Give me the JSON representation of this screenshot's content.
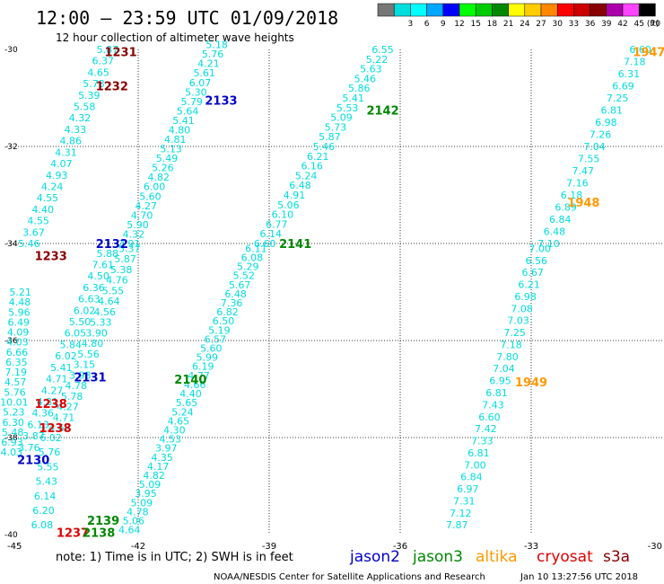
{
  "header": {
    "title": "12:00 – 23:59 UTC 01/09/2018",
    "subtitle": "12 hour collection of altimeter wave heights"
  },
  "legend": {
    "unit": "(ft)",
    "bins": [
      {
        "label": "",
        "color": "#777777"
      },
      {
        "label": "3",
        "color": "#00dddd"
      },
      {
        "label": "6",
        "color": "#00ffff"
      },
      {
        "label": "9",
        "color": "#00a8ff"
      },
      {
        "label": "12",
        "color": "#0000ff"
      },
      {
        "label": "15",
        "color": "#00ff00"
      },
      {
        "label": "18",
        "color": "#00cc00"
      },
      {
        "label": "21",
        "color": "#008800"
      },
      {
        "label": "24",
        "color": "#ffff00"
      },
      {
        "label": "27",
        "color": "#ffcc00"
      },
      {
        "label": "30",
        "color": "#ff8800"
      },
      {
        "label": "33",
        "color": "#ff0000"
      },
      {
        "label": "36",
        "color": "#cc0000"
      },
      {
        "label": "39",
        "color": "#880000"
      },
      {
        "label": "42",
        "color": "#aa00aa"
      },
      {
        "label": "45",
        "color": "#ff44ff"
      },
      {
        "label": "70",
        "color": "#000000"
      }
    ]
  },
  "axes": {
    "lon_ticks": [
      "-45",
      "-42",
      "-39",
      "-36",
      "-33",
      "-30"
    ],
    "lat_ticks": [
      "-30",
      "-32",
      "-34",
      "-36",
      "-38",
      "-40"
    ]
  },
  "satellites": [
    {
      "name": "jason2",
      "color": "#0000cc"
    },
    {
      "name": "jason3",
      "color": "#008800"
    },
    {
      "name": "altika",
      "color": "#ff9900"
    },
    {
      "name": "cryosat",
      "color": "#dd0000"
    },
    {
      "name": "s3a",
      "color": "#880000"
    }
  ],
  "footer": {
    "note": "note:  1) Time is in UTC;  2) SWH is in feet",
    "credit": "NOAA/NESDIS Center for Satellite Applications and Research",
    "timestamp": "Jan 10 13:27:56 UTC 2018"
  },
  "colors": {
    "value": "#00dddd",
    "jason2": "#0000cc",
    "jason3": "#008800",
    "altika": "#ff9900",
    "cryosat": "#dd0000",
    "s3a": "#880000"
  },
  "passes": [
    {
      "name": "A",
      "lon1": -42.7,
      "lat1": -30.0,
      "lon2": -44.5,
      "lat2": -34.0,
      "values": [
        "5.87",
        "6.37",
        "4.65",
        "5.73",
        "5.39",
        "5.58",
        "4.32",
        "4.33",
        "4.86",
        "4.31",
        "4.07",
        "4.93",
        "4.24",
        "4.55",
        "4.40",
        "4.55",
        "3.67",
        "5.46"
      ]
    },
    {
      "name": "B",
      "lon1": -42.7,
      "lat1": -34.2,
      "lon2": -44.5,
      "lat2": -38.2,
      "values": [
        "5.88",
        "7.61",
        "4.50",
        "6.36",
        "6.63",
        "6.02",
        "5.50",
        "6.05",
        "5.84",
        "6.02",
        "5.41",
        "4.71",
        "4.27",
        "4.31",
        "4.36",
        "6.13",
        "3.87",
        "3.76"
      ]
    },
    {
      "name": "C",
      "lon1": -44.7,
      "lat1": -35.0,
      "lon2": -44.9,
      "lat2": -38.3,
      "values": [
        "5.21",
        "4.48",
        "5.96",
        "6.49",
        "4.09",
        "4.03",
        "6.66",
        "6.35",
        "7.19",
        "4.57",
        "5.76",
        "10.01",
        "5.23",
        "6.30",
        "5.48",
        "6.93",
        "4.03"
      ]
    },
    {
      "name": "D",
      "lon1": -42.2,
      "lat1": -34.1,
      "lon2": -43.8,
      "lat2": -37.8,
      "values": [
        "5.37",
        "5.87",
        "5.38",
        "4.76",
        "5.55",
        "4.64",
        "4.56",
        "5.33",
        "3.90",
        "4.80",
        "5.56",
        "3.15",
        "3.98",
        "4.78",
        "5.78",
        "4.27",
        "4.71",
        "4.67"
      ]
    },
    {
      "name": "E",
      "lon1": -44.0,
      "lat1": -38.0,
      "lon2": -44.2,
      "lat2": -39.8,
      "values": [
        "6.02",
        "5.76",
        "5.55",
        "5.43",
        "6.14",
        "6.20",
        "6.08"
      ]
    },
    {
      "name": "F",
      "lon1": -40.2,
      "lat1": -29.9,
      "lon2": -42.2,
      "lat2": -34.0,
      "values": [
        "5.18",
        "5.76",
        "4.21",
        "5.61",
        "6.07",
        "5.30",
        "5.79",
        "5.64",
        "5.41",
        "4.80",
        "4.81",
        "5.13",
        "5.49",
        "5.26",
        "4.82",
        "6.00",
        "5.60",
        "4.27",
        "4.70",
        "5.90",
        "4.32",
        "3.91"
      ]
    },
    {
      "name": "G",
      "lon1": -39.3,
      "lat1": -34.1,
      "lon2": -42.2,
      "lat2": -39.9,
      "values": [
        "6.11",
        "6.08",
        "5.29",
        "5.52",
        "5.67",
        "6.48",
        "7.36",
        "6.82",
        "6.50",
        "5.19",
        "6.57",
        "5.60",
        "5.99",
        "6.19",
        "4.77",
        "4.66",
        "4.40",
        "5.65",
        "5.24",
        "4.65",
        "4.30",
        "4.53",
        "3.97",
        "4.35",
        "4.17",
        "4.82",
        "5.09",
        "3.95",
        "5.09",
        "4.78",
        "5.06",
        "4.64"
      ]
    },
    {
      "name": "H",
      "lon1": -36.4,
      "lat1": -30.0,
      "lon2": -39.1,
      "lat2": -34.0,
      "values": [
        "6.55",
        "5.22",
        "5.63",
        "5.46",
        "5.86",
        "5.41",
        "5.53",
        "5.09",
        "5.73",
        "5.87",
        "5.46",
        "6.21",
        "6.16",
        "5.24",
        "6.48",
        "4.91",
        "5.06",
        "6.10",
        "6.77",
        "6.14",
        "6.60"
      ]
    },
    {
      "name": "I",
      "lon1": -30.5,
      "lat1": -30.0,
      "lon2": -32.6,
      "lat2": -34.0,
      "values": [
        "6.60",
        "7.18",
        "6.31",
        "6.69",
        "7.25",
        "6.81",
        "6.98",
        "7.26",
        "7.04",
        "7.55",
        "7.47",
        "7.16",
        "6.18",
        "6.89",
        "6.84",
        "6.48",
        "7.10"
      ]
    },
    {
      "name": "J",
      "lon1": -32.8,
      "lat1": -34.1,
      "lon2": -34.7,
      "lat2": -39.8,
      "values": [
        "7.00",
        "6.56",
        "6.67",
        "6.21",
        "6.98",
        "7.08",
        "7.03",
        "7.25",
        "7.18",
        "7.80",
        "7.04",
        "6.95",
        "6.81",
        "7.43",
        "6.60",
        "7.42",
        "7.33",
        "6.81",
        "7.00",
        "6.84",
        "6.97",
        "7.31",
        "7.12",
        "7.87"
      ]
    }
  ],
  "pass_labels": [
    {
      "text": "1231",
      "sat": "s3a",
      "lon": -42.4,
      "lat": -30.05
    },
    {
      "text": "1232",
      "sat": "s3a",
      "lon": -42.6,
      "lat": -30.75
    },
    {
      "text": "2133",
      "sat": "jason2",
      "lon": -40.1,
      "lat": -31.05
    },
    {
      "text": "2142",
      "sat": "jason3",
      "lon": -36.4,
      "lat": -31.25
    },
    {
      "text": "1947",
      "sat": "altika",
      "lon": -30.3,
      "lat": -30.05
    },
    {
      "text": "1948",
      "sat": "altika",
      "lon": -31.8,
      "lat": -33.15
    },
    {
      "text": "2132",
      "sat": "jason2",
      "lon": -42.6,
      "lat": -34.0
    },
    {
      "text": "2141",
      "sat": "jason3",
      "lon": -38.4,
      "lat": -34.0
    },
    {
      "text": "1233",
      "sat": "s3a",
      "lon": -44.0,
      "lat": -34.25
    },
    {
      "text": "2131",
      "sat": "jason2",
      "lon": -43.1,
      "lat": -36.75
    },
    {
      "text": "2140",
      "sat": "jason3",
      "lon": -40.8,
      "lat": -36.8
    },
    {
      "text": "1949",
      "sat": "altika",
      "lon": -33.0,
      "lat": -36.85
    },
    {
      "text": "1238",
      "sat": "cryosat",
      "lon": -44.0,
      "lat": -37.3
    },
    {
      "text": "1238",
      "sat": "cryosat",
      "lon": -43.9,
      "lat": -37.8
    },
    {
      "text": "2130",
      "sat": "jason2",
      "lon": -44.4,
      "lat": -38.45
    },
    {
      "text": "2139",
      "sat": "jason3",
      "lon": -42.8,
      "lat": -39.7
    },
    {
      "text": "1237",
      "sat": "cryosat",
      "lon": -43.5,
      "lat": -39.95
    },
    {
      "text": "2138",
      "sat": "jason3",
      "lon": -42.9,
      "lat": -39.95
    }
  ]
}
